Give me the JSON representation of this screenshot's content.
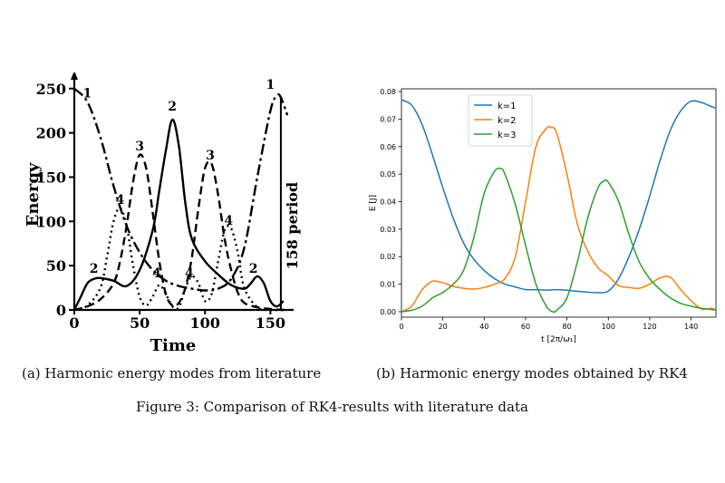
{
  "figure_caption": "Figure 3: Comparison of RK4-results with literature data",
  "chart_data": [
    {
      "type": "line",
      "caption": "(a) Harmonic energy modes from literature",
      "xlabel": "Time",
      "ylabel": "Energy",
      "xlim": [
        0,
        165
      ],
      "ylim": [
        0,
        260
      ],
      "xticks": [
        0,
        50,
        100,
        150
      ],
      "yticks": [
        0,
        50,
        100,
        150,
        200,
        250
      ],
      "annotation": "158 period",
      "grid": false,
      "series": [
        {
          "name": "1",
          "style": "dashdot",
          "labels": [
            {
              "text": "1",
              "x": 10,
              "y": 240
            },
            {
              "text": "1",
              "x": 150,
              "y": 250
            }
          ],
          "x": [
            0,
            10,
            20,
            30,
            40,
            50,
            60,
            70,
            80,
            90,
            100,
            110,
            120,
            130,
            140,
            150,
            155,
            158,
            163
          ],
          "y": [
            250,
            235,
            195,
            140,
            95,
            65,
            45,
            33,
            27,
            24,
            22,
            24,
            35,
            70,
            150,
            225,
            242,
            240,
            220
          ]
        },
        {
          "name": "2",
          "style": "solid",
          "labels": [
            {
              "text": "2",
              "x": 15,
              "y": 42
            },
            {
              "text": "2",
              "x": 75,
              "y": 225
            },
            {
              "text": "2",
              "x": 137,
              "y": 42
            }
          ],
          "x": [
            0,
            5,
            10,
            15,
            20,
            30,
            40,
            50,
            60,
            65,
            70,
            75,
            80,
            85,
            90,
            100,
            110,
            120,
            130,
            135,
            140,
            145,
            150,
            155,
            160
          ],
          "y": [
            0,
            15,
            30,
            35,
            36,
            33,
            27,
            45,
            90,
            135,
            180,
            215,
            185,
            120,
            80,
            55,
            40,
            28,
            24,
            30,
            38,
            30,
            10,
            4,
            10
          ]
        },
        {
          "name": "3",
          "style": "dashed",
          "labels": [
            {
              "text": "3",
              "x": 50,
              "y": 180
            },
            {
              "text": "3",
              "x": 104,
              "y": 170
            }
          ],
          "x": [
            0,
            10,
            20,
            30,
            35,
            40,
            45,
            50,
            55,
            60,
            65,
            70,
            75,
            80,
            85,
            90,
            95,
            100,
            105,
            110,
            115,
            120,
            125,
            130,
            140,
            150,
            160
          ],
          "y": [
            0,
            4,
            12,
            30,
            55,
            95,
            145,
            175,
            160,
            110,
            55,
            18,
            5,
            8,
            25,
            60,
            115,
            160,
            165,
            130,
            80,
            45,
            20,
            8,
            3,
            1,
            0
          ]
        },
        {
          "name": "4",
          "style": "dotted",
          "labels": [
            {
              "text": "4",
              "x": 35,
              "y": 120
            },
            {
              "text": "4",
              "x": 63,
              "y": 37
            },
            {
              "text": "4",
              "x": 88,
              "y": 37
            },
            {
              "text": "4",
              "x": 118,
              "y": 96
            }
          ],
          "x": [
            0,
            10,
            20,
            25,
            30,
            35,
            40,
            45,
            50,
            55,
            60,
            65,
            70,
            75,
            80,
            85,
            90,
            95,
            100,
            105,
            110,
            115,
            120,
            125,
            130,
            140,
            150,
            160
          ],
          "y": [
            0,
            5,
            25,
            60,
            100,
            115,
            95,
            50,
            15,
            5,
            15,
            28,
            18,
            4,
            3,
            25,
            38,
            30,
            10,
            18,
            55,
            90,
            92,
            65,
            25,
            3,
            0,
            0
          ]
        }
      ]
    },
    {
      "type": "line",
      "caption": "(b) Harmonic energy modes obtained by RK4",
      "xlabel": "t [2π/ω₁]",
      "ylabel": "E [J]",
      "xlim": [
        0,
        152
      ],
      "ylim": [
        -0.002,
        0.081
      ],
      "xticks": [
        0,
        20,
        40,
        60,
        80,
        100,
        120,
        140
      ],
      "yticks": [
        0.0,
        0.01,
        0.02,
        0.03,
        0.04,
        0.05,
        0.06,
        0.07,
        0.08
      ],
      "legend": "top-left",
      "grid": false,
      "series": [
        {
          "name": "k=1",
          "color": "#1f77b4",
          "x": [
            0,
            5,
            10,
            15,
            20,
            25,
            30,
            35,
            40,
            45,
            50,
            55,
            60,
            65,
            70,
            75,
            80,
            85,
            90,
            95,
            100,
            105,
            110,
            115,
            120,
            125,
            130,
            135,
            140,
            145,
            150,
            152
          ],
          "y": [
            0.077,
            0.075,
            0.068,
            0.057,
            0.045,
            0.034,
            0.025,
            0.019,
            0.015,
            0.012,
            0.01,
            0.009,
            0.008,
            0.008,
            0.0078,
            0.008,
            0.0078,
            0.0074,
            0.0071,
            0.0069,
            0.0075,
            0.012,
            0.02,
            0.03,
            0.042,
            0.055,
            0.066,
            0.073,
            0.0765,
            0.076,
            0.0745,
            0.074
          ]
        },
        {
          "name": "k=2",
          "color": "#ff7f0e",
          "x": [
            0,
            5,
            10,
            15,
            20,
            25,
            30,
            35,
            40,
            45,
            50,
            55,
            60,
            65,
            70,
            72,
            75,
            80,
            85,
            90,
            95,
            100,
            105,
            110,
            115,
            120,
            125,
            130,
            135,
            140,
            145,
            150,
            152
          ],
          "y": [
            0.0,
            0.002,
            0.008,
            0.011,
            0.0105,
            0.0092,
            0.0085,
            0.0082,
            0.0088,
            0.01,
            0.012,
            0.02,
            0.04,
            0.06,
            0.0665,
            0.067,
            0.065,
            0.05,
            0.032,
            0.022,
            0.016,
            0.013,
            0.0095,
            0.0088,
            0.0085,
            0.01,
            0.0123,
            0.0125,
            0.008,
            0.004,
            0.001,
            0.0012,
            0.0005
          ]
        },
        {
          "name": "k=3",
          "color": "#2ca02c",
          "x": [
            0,
            5,
            10,
            15,
            20,
            25,
            30,
            35,
            40,
            45,
            48,
            50,
            55,
            60,
            65,
            70,
            73,
            75,
            80,
            85,
            90,
            95,
            98,
            100,
            105,
            110,
            115,
            120,
            125,
            130,
            135,
            140,
            145,
            150,
            152
          ],
          "y": [
            0.0,
            0.0005,
            0.002,
            0.005,
            0.007,
            0.01,
            0.015,
            0.027,
            0.043,
            0.051,
            0.052,
            0.05,
            0.039,
            0.024,
            0.01,
            0.002,
            0.0,
            0.0005,
            0.005,
            0.018,
            0.034,
            0.045,
            0.0475,
            0.047,
            0.04,
            0.028,
            0.018,
            0.012,
            0.008,
            0.005,
            0.003,
            0.002,
            0.0012,
            0.0008,
            0.0005
          ]
        }
      ]
    }
  ]
}
